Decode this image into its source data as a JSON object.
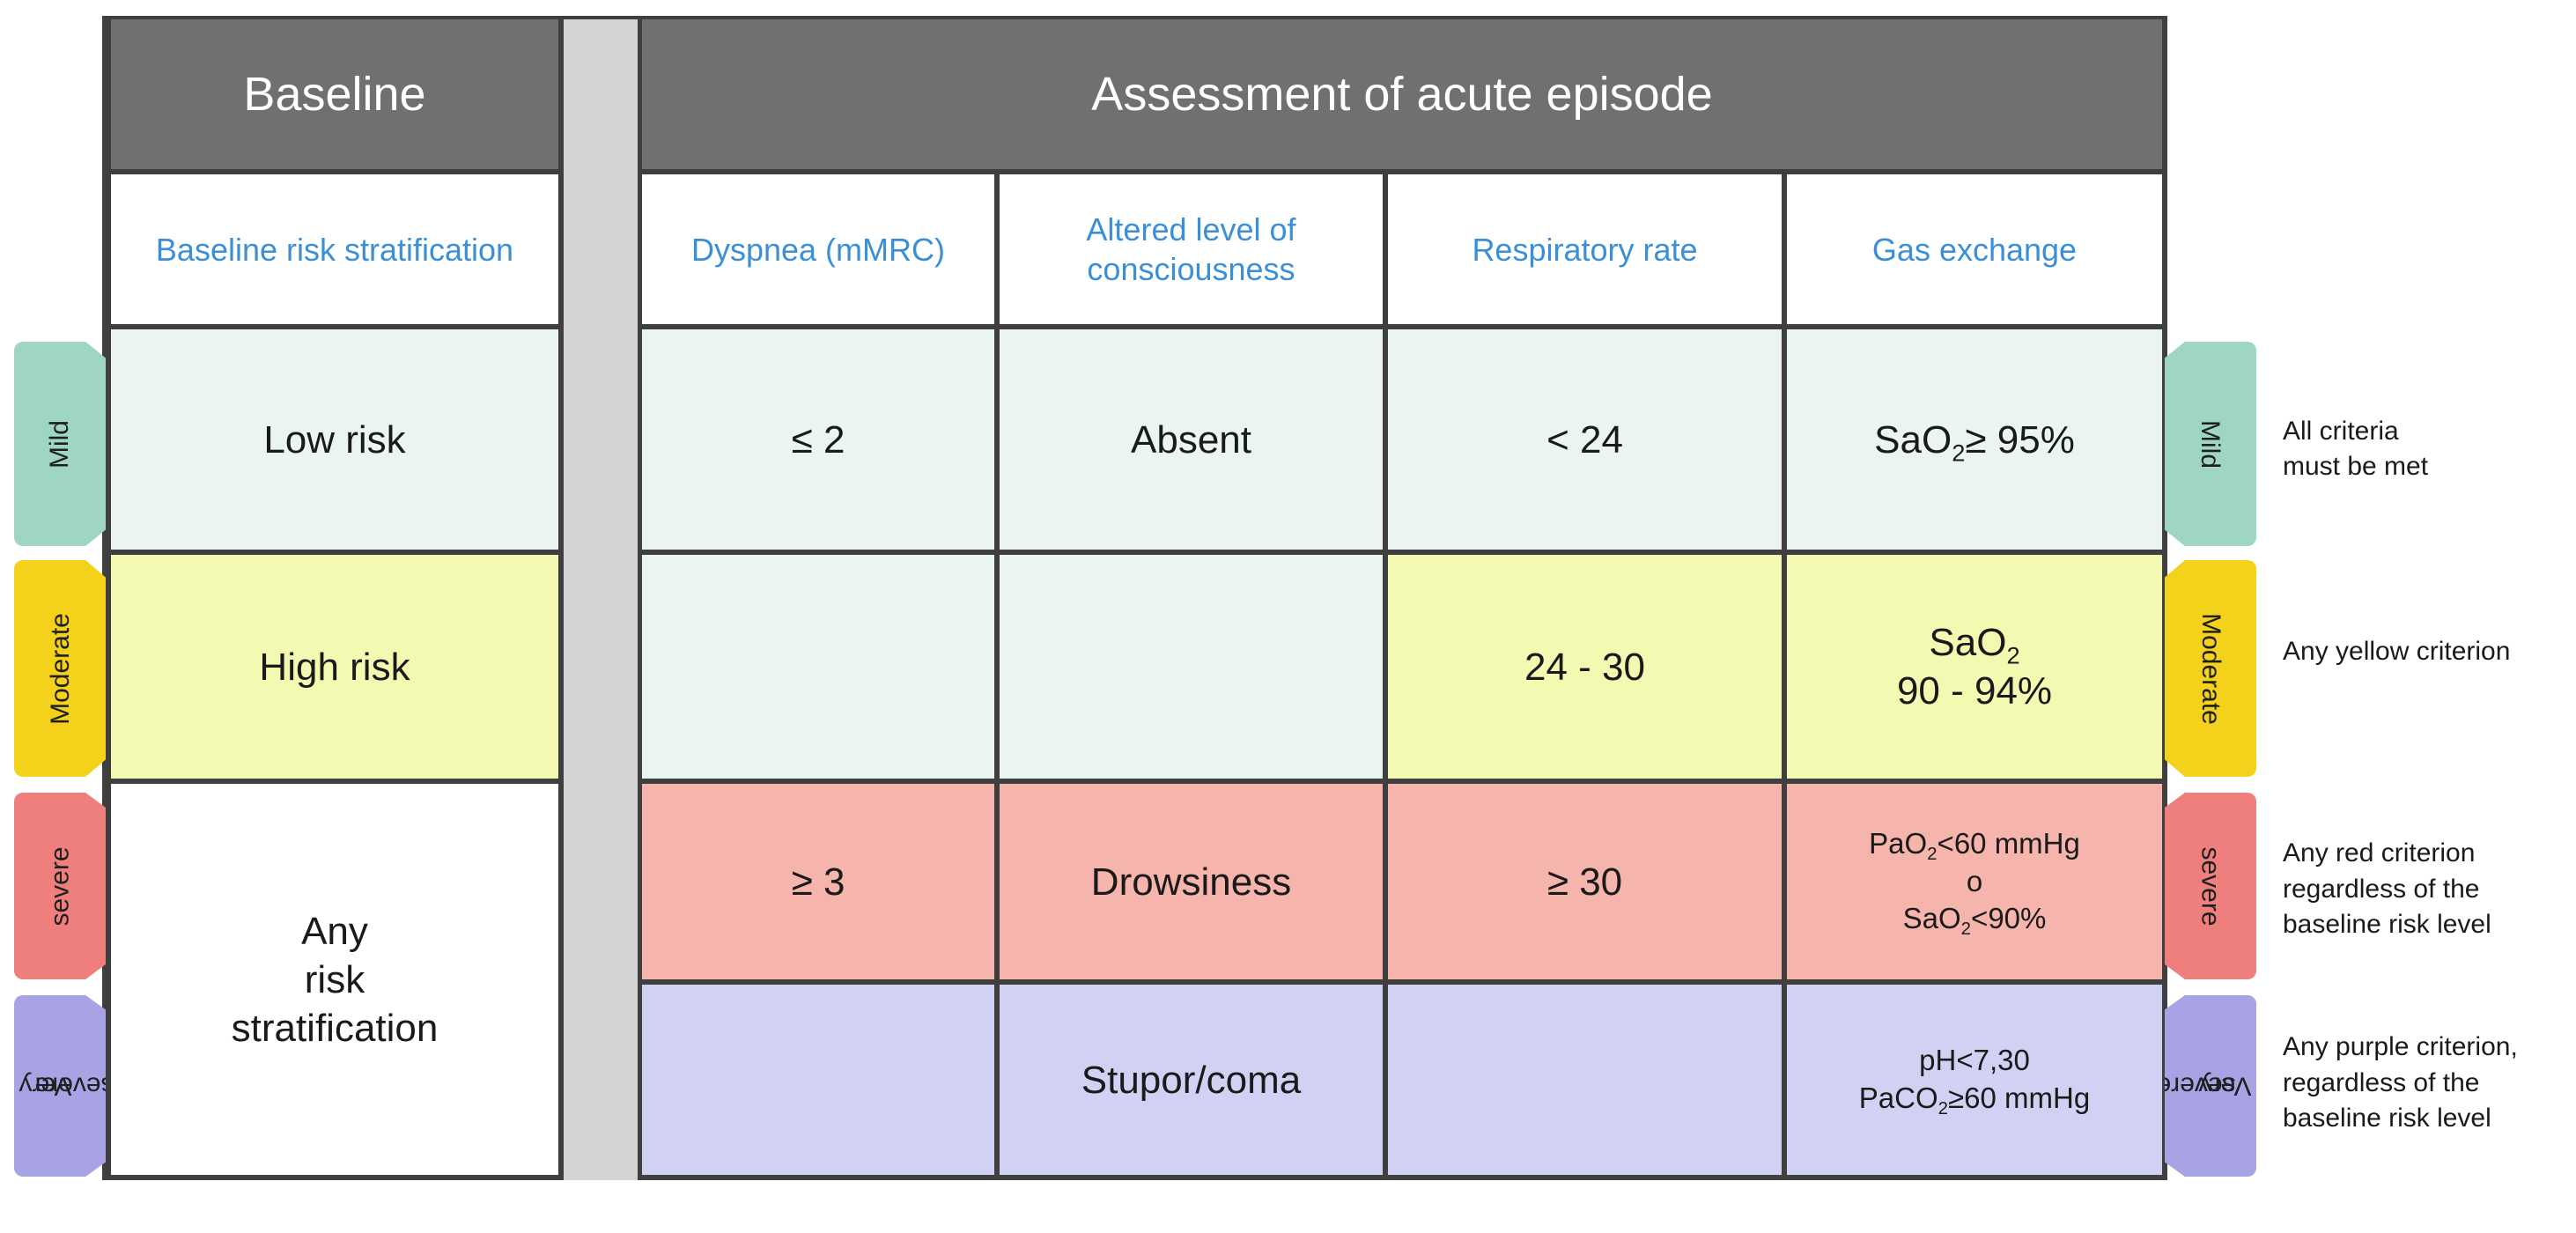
{
  "header": {
    "baseline": "Baseline",
    "assessment": "Assessment of acute episode"
  },
  "columns": {
    "baseline_risk": "Baseline risk stratification",
    "dyspnea": "Dyspnea (mMRC)",
    "consciousness": "Altered level of consciousness",
    "respiratory_rate": "Respiratory rate",
    "gas_exchange": "Gas exchange"
  },
  "rows": {
    "mild": {
      "baseline": "Low risk",
      "dyspnea": "≤ 2",
      "consciousness": "Absent",
      "respiratory_rate": "< 24",
      "gas_exchange_pre": "SaO",
      "gas_exchange_sub": "2",
      "gas_exchange_post": "≥ 95%"
    },
    "moderate": {
      "baseline": "High risk",
      "respiratory_rate": "24 - 30",
      "gas_exchange_pre": "SaO",
      "gas_exchange_sub": "2",
      "gas_exchange_line2": "90 - 94%"
    },
    "severe": {
      "dyspnea": "≥ 3",
      "consciousness": "Drowsiness",
      "respiratory_rate": "≥ 30",
      "gas_l1_pre": "PaO",
      "gas_l1_sub": "2",
      "gas_l1_post": "<60  mmHg",
      "gas_l2": "o",
      "gas_l3_pre": "SaO",
      "gas_l3_sub": "2",
      "gas_l3_post": "<90%"
    },
    "very_severe": {
      "consciousness": "Stupor/coma",
      "gas_l1": "pH<7,30",
      "gas_l2_pre": "PaCO",
      "gas_l2_sub": "2",
      "gas_l2_post": "≥60  mmHg"
    },
    "any_risk": {
      "line1": "Any",
      "line2": "risk",
      "line3": "stratification"
    }
  },
  "tabs": {
    "mild": "Mild",
    "moderate": "Moderate",
    "severe": "severe",
    "very_severe_l1": "Very",
    "very_severe_l2": "severe"
  },
  "notes": {
    "mild_l1": "All criteria",
    "mild_l2": "must be met",
    "moderate": "Any yellow criterion",
    "severe_l1": "Any red criterion",
    "severe_l2": "regardless of the",
    "severe_l3": "baseline risk level",
    "very_severe_l1": "Any purple criterion,",
    "very_severe_l2": "regardless of the",
    "very_severe_l3": "baseline risk level"
  },
  "colors": {
    "header": "#707070",
    "column_header_text": "#3b8fd6",
    "mild": "#eaf5f0",
    "moderate": "#f4f9b2",
    "severe": "#f5b4ac",
    "very_severe": "#d1d1f4",
    "tab_mild": "#9ed6c1",
    "tab_moderate": "#f4d11a",
    "tab_severe": "#ef7f7c",
    "tab_very_severe": "#a8a3e4"
  }
}
